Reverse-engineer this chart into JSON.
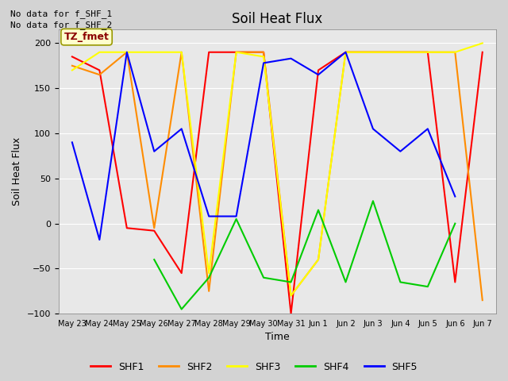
{
  "title": "Soil Heat Flux",
  "ylabel": "Soil Heat Flux",
  "xlabel": "Time",
  "ylim": [
    -100,
    215
  ],
  "yticks": [
    -100,
    -50,
    0,
    50,
    100,
    150,
    200
  ],
  "annotation_text1": "No data for f_SHF_1",
  "annotation_text2": "No data for f_SHF_2",
  "annotation_box": "TZ_fmet",
  "legend_labels": [
    "SHF1",
    "SHF2",
    "SHF3",
    "SHF4",
    "SHF5"
  ],
  "colors": {
    "SHF1": "#ff0000",
    "SHF2": "#ff8c00",
    "SHF3": "#ffff00",
    "SHF4": "#00cc00",
    "SHF5": "#0000ff"
  },
  "time_labels": [
    "May 23",
    "May 24",
    "May 25",
    "May 26",
    "May 27",
    "May 28",
    "May 29",
    "May 30",
    "May 31",
    "Jun 1",
    "Jun 2",
    "Jun 3",
    "Jun 4",
    "Jun 5",
    "Jun 6",
    "Jun 7"
  ],
  "time_values": [
    0,
    1,
    2,
    3,
    4,
    5,
    6,
    7,
    8,
    9,
    10,
    11,
    12,
    13,
    14,
    15
  ],
  "SHF1": [
    185,
    170,
    -5,
    -8,
    -55,
    190,
    190,
    190,
    -100,
    170,
    190,
    190,
    190,
    190,
    -65,
    190
  ],
  "SHF2": [
    175,
    165,
    190,
    -5,
    190,
    -75,
    190,
    190,
    -80,
    -40,
    190,
    190,
    190,
    190,
    190,
    -85
  ],
  "SHF3": [
    170,
    190,
    190,
    190,
    190,
    -55,
    190,
    185,
    -80,
    -40,
    190,
    190,
    190,
    190,
    190,
    200
  ],
  "SHF4": [
    null,
    null,
    null,
    -40,
    -95,
    -60,
    5,
    -60,
    -65,
    15,
    -65,
    25,
    -65,
    -70,
    0,
    null
  ],
  "SHF5": [
    90,
    -18,
    190,
    80,
    105,
    8,
    8,
    178,
    183,
    165,
    190,
    105,
    80,
    105,
    30,
    null
  ],
  "linewidth": 1.5
}
